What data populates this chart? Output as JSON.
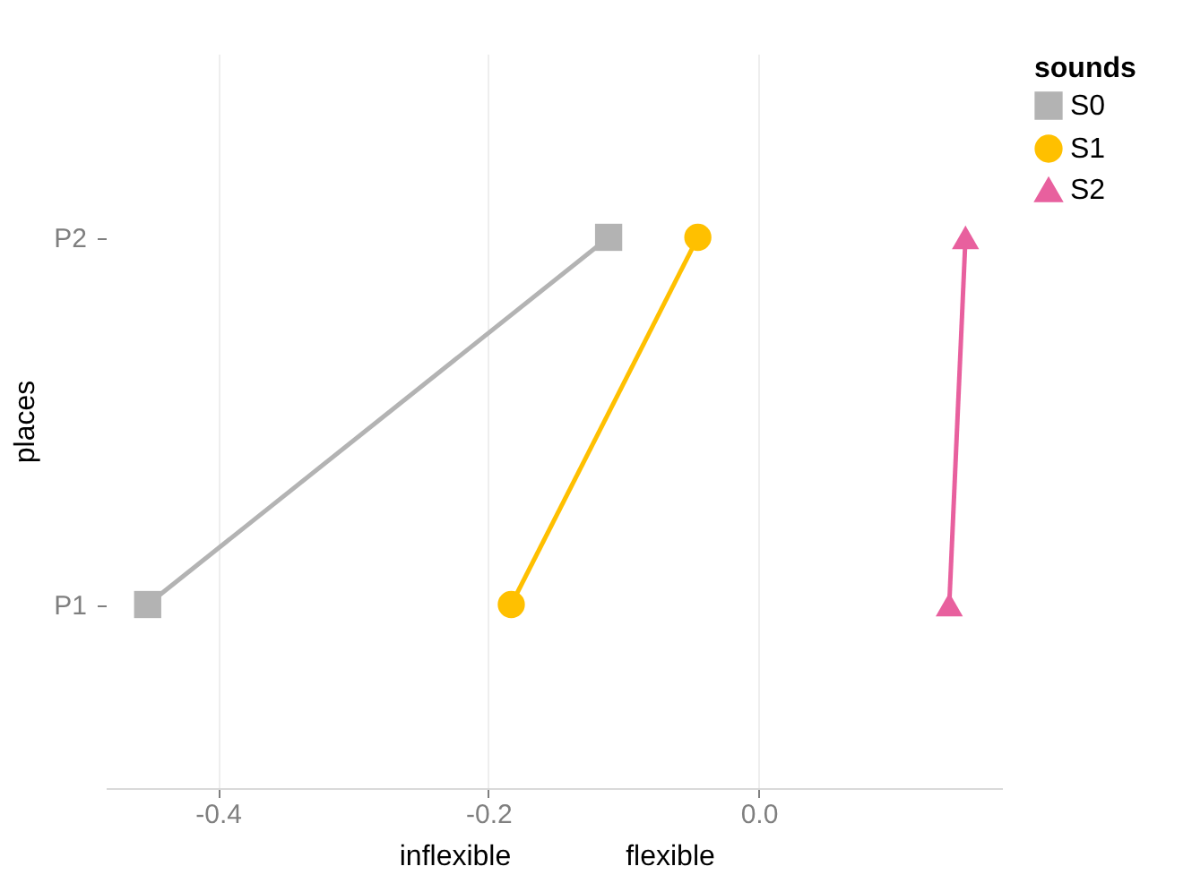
{
  "chart_data": {
    "type": "line",
    "orientation": "horizontal",
    "ylabel": "places",
    "legend_title": "sounds",
    "annotations": [
      "inflexible",
      "flexible"
    ],
    "categories": [
      "P2",
      "P1"
    ],
    "series": [
      {
        "name": "S0",
        "color": "#b3b3b3",
        "marker": "square",
        "values": [
          -0.111,
          -0.452
        ]
      },
      {
        "name": "S1",
        "color": "#ffc000",
        "marker": "circle",
        "values": [
          -0.045,
          -0.183
        ]
      },
      {
        "name": "S2",
        "color": "#e8609e",
        "marker": "triangle",
        "values": [
          0.153,
          0.141
        ]
      }
    ],
    "xlim": [
      -0.483,
      0.18
    ],
    "xticks": [
      {
        "value": -0.4,
        "label": "-0.4"
      },
      {
        "value": -0.2,
        "label": "-0.2"
      },
      {
        "value": 0,
        "label": "0.0"
      }
    ],
    "grid": "x",
    "legend": "right"
  }
}
